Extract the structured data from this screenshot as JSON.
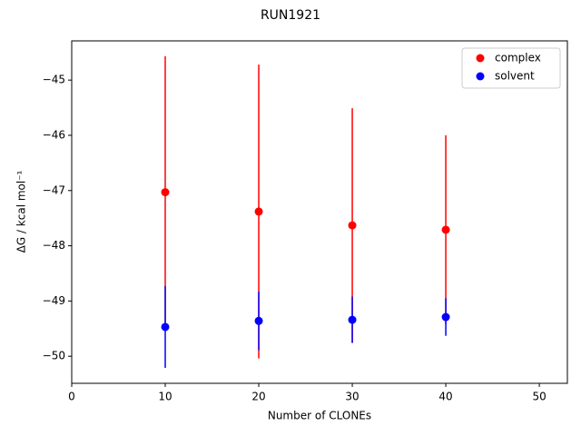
{
  "chart_data": {
    "type": "scatter",
    "title": "RUN1921",
    "x_label": "Number of CLONEs",
    "y_label": "ΔG / kcal mol⁻¹",
    "x": [
      10,
      20,
      30,
      40
    ],
    "series": [
      {
        "name": "complex",
        "color": "#ff0000",
        "values": [
          -47.03,
          -47.38,
          -47.63,
          -47.71
        ],
        "errors": [
          2.46,
          2.66,
          2.12,
          1.71
        ]
      },
      {
        "name": "solvent",
        "color": "#0000ff",
        "values": [
          -49.47,
          -49.36,
          -49.34,
          -49.29
        ],
        "errors": [
          0.74,
          0.53,
          0.42,
          0.34
        ]
      }
    ],
    "xlim": [
      0,
      53
    ],
    "xticks": [
      0,
      10,
      20,
      30,
      40,
      50
    ],
    "ylim": [
      -50.49,
      -44.29
    ],
    "yticks": [
      {
        "value": -50,
        "label": "−50"
      },
      {
        "value": -49,
        "label": "−49"
      },
      {
        "value": -48,
        "label": "−48"
      },
      {
        "value": -47,
        "label": "−47"
      },
      {
        "value": -46,
        "label": "−46"
      },
      {
        "value": -45,
        "label": "−45"
      }
    ],
    "legend": "upper right",
    "grid": false
  }
}
